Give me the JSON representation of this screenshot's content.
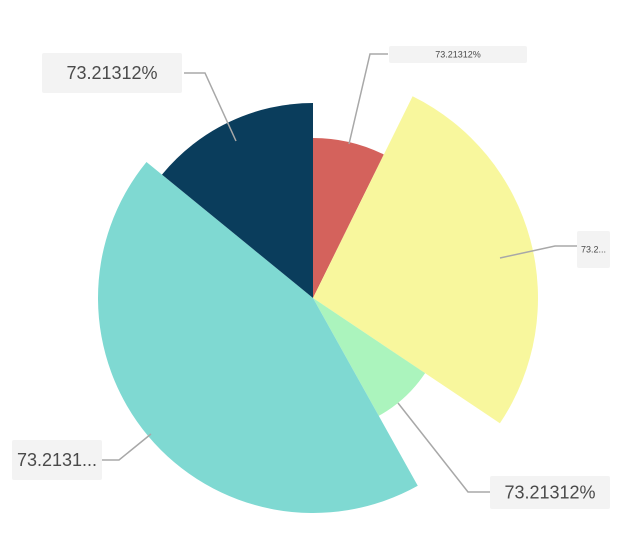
{
  "chart_data": {
    "type": "pie",
    "subtype": "nightingale-rose",
    "title": "",
    "slices": [
      {
        "label": "73.21312%",
        "value": 7.3,
        "color": "#d4625c"
      },
      {
        "label": "73.2...",
        "value": 27.1,
        "color": "#f8f79d"
      },
      {
        "label": "73.21312%",
        "value": 7.5,
        "color": "#abf4bd"
      },
      {
        "label": "73.2131...",
        "value": 44.0,
        "color": "#7fd9d2"
      },
      {
        "label": "73.21312%",
        "value": 14.1,
        "color": "#0a3d5c"
      }
    ],
    "legend": "none"
  }
}
